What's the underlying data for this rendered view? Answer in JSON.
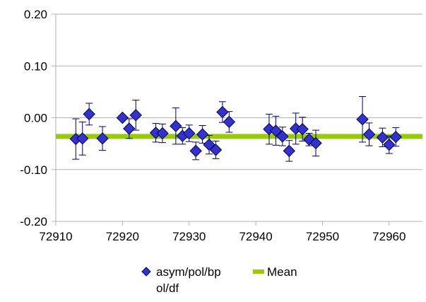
{
  "chart_data": {
    "type": "scatter",
    "title": "",
    "xlabel": "",
    "ylabel": "",
    "xlim": [
      72910,
      72965
    ],
    "ylim": [
      -0.2,
      0.2
    ],
    "x_ticks": [
      "72910",
      "72920",
      "72930",
      "72940",
      "72950",
      "72960"
    ],
    "x_tick_values": [
      72910,
      72920,
      72930,
      72940,
      72950,
      72960
    ],
    "y_ticks": [
      "0.20",
      "0.10",
      "0.00",
      "-0.10",
      "-0.20"
    ],
    "y_tick_values": [
      0.2,
      0.1,
      0.0,
      -0.1,
      -0.2
    ],
    "grid": "horizontal only, light gray",
    "legend_position": "bottom",
    "series": [
      {
        "name": "asym/pol/bpol/df",
        "legend_lines": [
          "asym/pol/bp",
          "ol/df"
        ],
        "marker": "diamond",
        "color": "#3333cc",
        "border_color": "#000066",
        "points": [
          {
            "x": 72913,
            "y": -0.041,
            "err": 0.039
          },
          {
            "x": 72914,
            "y": -0.04,
            "err": 0.032
          },
          {
            "x": 72915,
            "y": 0.007,
            "err": 0.021
          },
          {
            "x": 72917,
            "y": -0.04,
            "err": 0.023
          },
          {
            "x": 72920,
            "y": 0.0,
            "err": 0.003
          },
          {
            "x": 72921,
            "y": -0.021,
            "err": 0.019
          },
          {
            "x": 72922,
            "y": 0.005,
            "err": 0.029
          },
          {
            "x": 72925,
            "y": -0.029,
            "err": 0.018
          },
          {
            "x": 72926,
            "y": -0.03,
            "err": 0.018
          },
          {
            "x": 72928,
            "y": -0.016,
            "err": 0.035
          },
          {
            "x": 72929,
            "y": -0.035,
            "err": 0.016
          },
          {
            "x": 72930,
            "y": -0.03,
            "err": 0.016
          },
          {
            "x": 72931,
            "y": -0.064,
            "err": 0.017
          },
          {
            "x": 72932,
            "y": -0.032,
            "err": 0.017
          },
          {
            "x": 72933,
            "y": -0.052,
            "err": 0.018
          },
          {
            "x": 72934,
            "y": -0.062,
            "err": 0.017
          },
          {
            "x": 72935,
            "y": 0.011,
            "err": 0.02
          },
          {
            "x": 72936,
            "y": -0.008,
            "err": 0.02
          },
          {
            "x": 72942,
            "y": -0.022,
            "err": 0.029
          },
          {
            "x": 72943,
            "y": -0.025,
            "err": 0.028
          },
          {
            "x": 72944,
            "y": -0.036,
            "err": 0.018
          },
          {
            "x": 72945,
            "y": -0.064,
            "err": 0.02
          },
          {
            "x": 72946,
            "y": -0.021,
            "err": 0.03
          },
          {
            "x": 72947,
            "y": -0.022,
            "err": 0.023
          },
          {
            "x": 72948,
            "y": -0.042,
            "err": 0.012
          },
          {
            "x": 72949,
            "y": -0.049,
            "err": 0.025
          },
          {
            "x": 72956,
            "y": -0.003,
            "err": 0.044
          },
          {
            "x": 72957,
            "y": -0.032,
            "err": 0.022
          },
          {
            "x": 72959,
            "y": -0.038,
            "err": 0.018
          },
          {
            "x": 72960,
            "y": -0.052,
            "err": 0.017
          },
          {
            "x": 72961,
            "y": -0.037,
            "err": 0.018
          }
        ]
      },
      {
        "name": "Mean",
        "type": "line",
        "color": "#99cc00",
        "y": -0.036
      }
    ]
  }
}
